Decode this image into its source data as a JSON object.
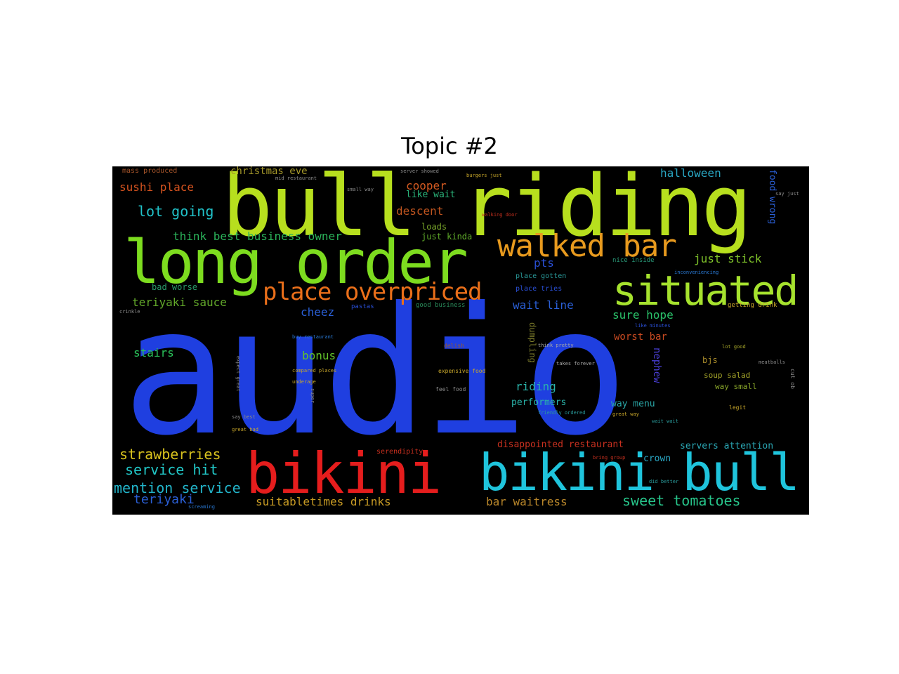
{
  "title": "Topic #2",
  "words": [
    {
      "text": "audio",
      "color": "#1f3fe0"
    },
    {
      "text": "bull riding",
      "color": "#b7df1e"
    },
    {
      "text": "long order",
      "color": "#7ddc1f"
    },
    {
      "text": "bikini",
      "color": "#e51d1d"
    },
    {
      "text": "bikini bull",
      "color": "#1fc4dc"
    },
    {
      "text": "situated",
      "color": "#a6e22e"
    },
    {
      "text": "walked bar",
      "color": "#e89a1e"
    },
    {
      "text": "place overpriced",
      "color": "#ea6f1a"
    },
    {
      "text": "strawberries",
      "color": "#d8c21e"
    },
    {
      "text": "service hit",
      "color": "#21c7c7"
    },
    {
      "text": "mention service",
      "color": "#22b4c9"
    },
    {
      "text": "sweet tomatoes",
      "color": "#27c48a"
    },
    {
      "text": "teriyaki",
      "color": "#2a5fd6"
    },
    {
      "text": "suitabletimes drinks",
      "color": "#c89b24"
    },
    {
      "text": "bar waitress",
      "color": "#b8862a"
    },
    {
      "text": "sushi place",
      "color": "#d6531f"
    },
    {
      "text": "lot going",
      "color": "#21c2c9"
    },
    {
      "text": "christmas eve",
      "color": "#a79a2a"
    },
    {
      "text": "halloween",
      "color": "#2aa7c4"
    },
    {
      "text": "think best business owner",
      "color": "#2bb35a"
    },
    {
      "text": "cooper",
      "color": "#d45a21"
    },
    {
      "text": "like wait",
      "color": "#2ab47a"
    },
    {
      "text": "descent",
      "color": "#c0551f"
    },
    {
      "text": "loads",
      "color": "#7aa72a"
    },
    {
      "text": "just kinda",
      "color": "#5faa2a"
    },
    {
      "text": "just stick",
      "color": "#7fc22a"
    },
    {
      "text": "teriyaki sauce",
      "color": "#62a82a"
    },
    {
      "text": "bad worse",
      "color": "#2a9b6a"
    },
    {
      "text": "cheez",
      "color": "#2a5fd6"
    },
    {
      "text": "pts",
      "color": "#2a4fd6"
    },
    {
      "text": "wait line",
      "color": "#2a5fd6"
    },
    {
      "text": "sure hope",
      "color": "#2ac26a"
    },
    {
      "text": "worst bar",
      "color": "#c84a21"
    },
    {
      "text": "stairs",
      "color": "#2ac25a"
    },
    {
      "text": "bonus",
      "color": "#62c22a"
    },
    {
      "text": "riding",
      "color": "#2ab4aa"
    },
    {
      "text": "performers",
      "color": "#2ab4aa"
    },
    {
      "text": "way menu",
      "color": "#2aa7a7"
    },
    {
      "text": "disappointed restaurant",
      "color": "#c8301f"
    },
    {
      "text": "servers attention",
      "color": "#2aa7b4"
    },
    {
      "text": "crown",
      "color": "#2aa7c4"
    },
    {
      "text": "serendipity",
      "color": "#c8301f"
    },
    {
      "text": "bjs",
      "color": "#a78a2a"
    },
    {
      "text": "soup salad",
      "color": "#a7a72a"
    },
    {
      "text": "way small",
      "color": "#8aa72a"
    },
    {
      "text": "nephew",
      "color": "#4a3fd6"
    },
    {
      "text": "dumpling",
      "color": "#7a7a2a"
    },
    {
      "text": "food wrong",
      "color": "#2a5fd6"
    },
    {
      "text": "mass produced",
      "color": "#a7552a"
    },
    {
      "text": "place gotten",
      "color": "#2a9b9b"
    },
    {
      "text": "place tries",
      "color": "#2a4fd6"
    },
    {
      "text": "nice inside",
      "color": "#2a9b7a"
    },
    {
      "text": "good business",
      "color": "#2a8a5a"
    },
    {
      "text": "pastas",
      "color": "#2a4fd6"
    },
    {
      "text": "getting drink",
      "color": "#c8a72a"
    },
    {
      "text": "expensive food",
      "color": "#c8a72a"
    },
    {
      "text": "feel food",
      "color": "#8a8a8a"
    },
    {
      "text": "delish",
      "color": "#9a5a2a"
    },
    {
      "text": "compared places",
      "color": "#c8a72a"
    },
    {
      "text": "friendly ordered",
      "color": "#2a9b9b"
    },
    {
      "text": "great bad",
      "color": "#c8a72a"
    },
    {
      "text": "great way",
      "color": "#c8a72a"
    },
    {
      "text": "wait wait",
      "color": "#2a9b9b"
    },
    {
      "text": "legit",
      "color": "#c8a72a"
    },
    {
      "text": "lot good",
      "color": "#a7a72a"
    },
    {
      "text": "server showed",
      "color": "#8a8a8a"
    },
    {
      "text": "burgers just",
      "color": "#c8a72a"
    },
    {
      "text": "small way",
      "color": "#8a8a8a"
    },
    {
      "text": "walking door",
      "color": "#c8301f"
    },
    {
      "text": "inconveniencing",
      "color": "#2a7ad6"
    },
    {
      "text": "say just",
      "color": "#8a8a8a"
    },
    {
      "text": "like minutes",
      "color": "#2a4fd6"
    },
    {
      "text": "buy restaurant",
      "color": "#2a7ad6"
    },
    {
      "text": "think pretty",
      "color": "#a7a7a7"
    },
    {
      "text": "takes forever",
      "color": "#a7a7a7"
    },
    {
      "text": "underage",
      "color": "#c8a72a"
    },
    {
      "text": "bring group",
      "color": "#c8301f"
    },
    {
      "text": "did better",
      "color": "#2a9b9b"
    },
    {
      "text": "crinkle",
      "color": "#8a8a8a"
    },
    {
      "text": "mid restaurant",
      "color": "#8a8a8a"
    },
    {
      "text": "screaming",
      "color": "#2a7ad6"
    },
    {
      "text": "say best",
      "color": "#8a8a8a"
    },
    {
      "text": "meatballs",
      "color": "#8a8a8a"
    },
    {
      "text": "expect great",
      "color": "#8a8a8a"
    },
    {
      "text": "super",
      "color": "#8a8a8a"
    },
    {
      "text": "cut ob",
      "color": "#8a8a8a"
    }
  ]
}
